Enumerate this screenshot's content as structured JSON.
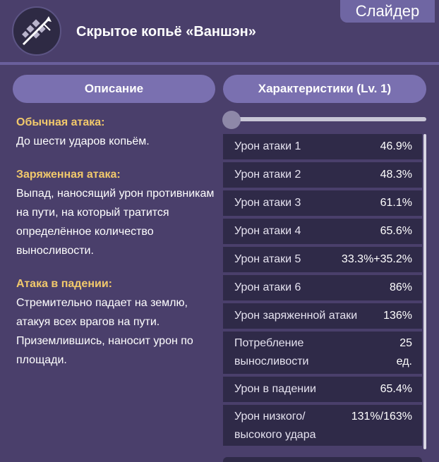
{
  "header": {
    "slider_label": "Слайдер",
    "title": "Скрытое копьё «Ваншэн»",
    "icon": "spear-icon"
  },
  "tabs": {
    "description": "Описание",
    "stats": "Характеристики (Lv. 1)"
  },
  "level_slider": {
    "value": 0
  },
  "description": [
    {
      "heading": "Обычная атака:",
      "text": "До шести ударов копьём."
    },
    {
      "heading": "Заряженная атака:",
      "text": "Выпад, наносящий урон противникам на пути, на который тратится определённое количество выносливости."
    },
    {
      "heading": "Атака в падении:",
      "text": "Стремительно падает на землю, атакуя всех врагов на пути. Приземлившись, наносит урон по площади."
    }
  ],
  "stats": [
    {
      "label": "Урон атаки 1",
      "value": "46.9%"
    },
    {
      "label": "Урон атаки 2",
      "value": "48.3%"
    },
    {
      "label": "Урон атаки 3",
      "value": "61.1%"
    },
    {
      "label": "Урон атаки 4",
      "value": "65.6%"
    },
    {
      "label": "Урон атаки 5",
      "value": "33.3%+35.2%"
    },
    {
      "label": "Урон атаки 6",
      "value": "86%"
    },
    {
      "label": "Урон заряженной атаки",
      "value": "136%"
    },
    {
      "label": "Потребление выносливости",
      "value": "25 ед."
    },
    {
      "label": "Урон в падении",
      "value": "65.4%"
    },
    {
      "label": "Урон низкого/ высокого удара",
      "value": "131%/163%"
    }
  ]
}
